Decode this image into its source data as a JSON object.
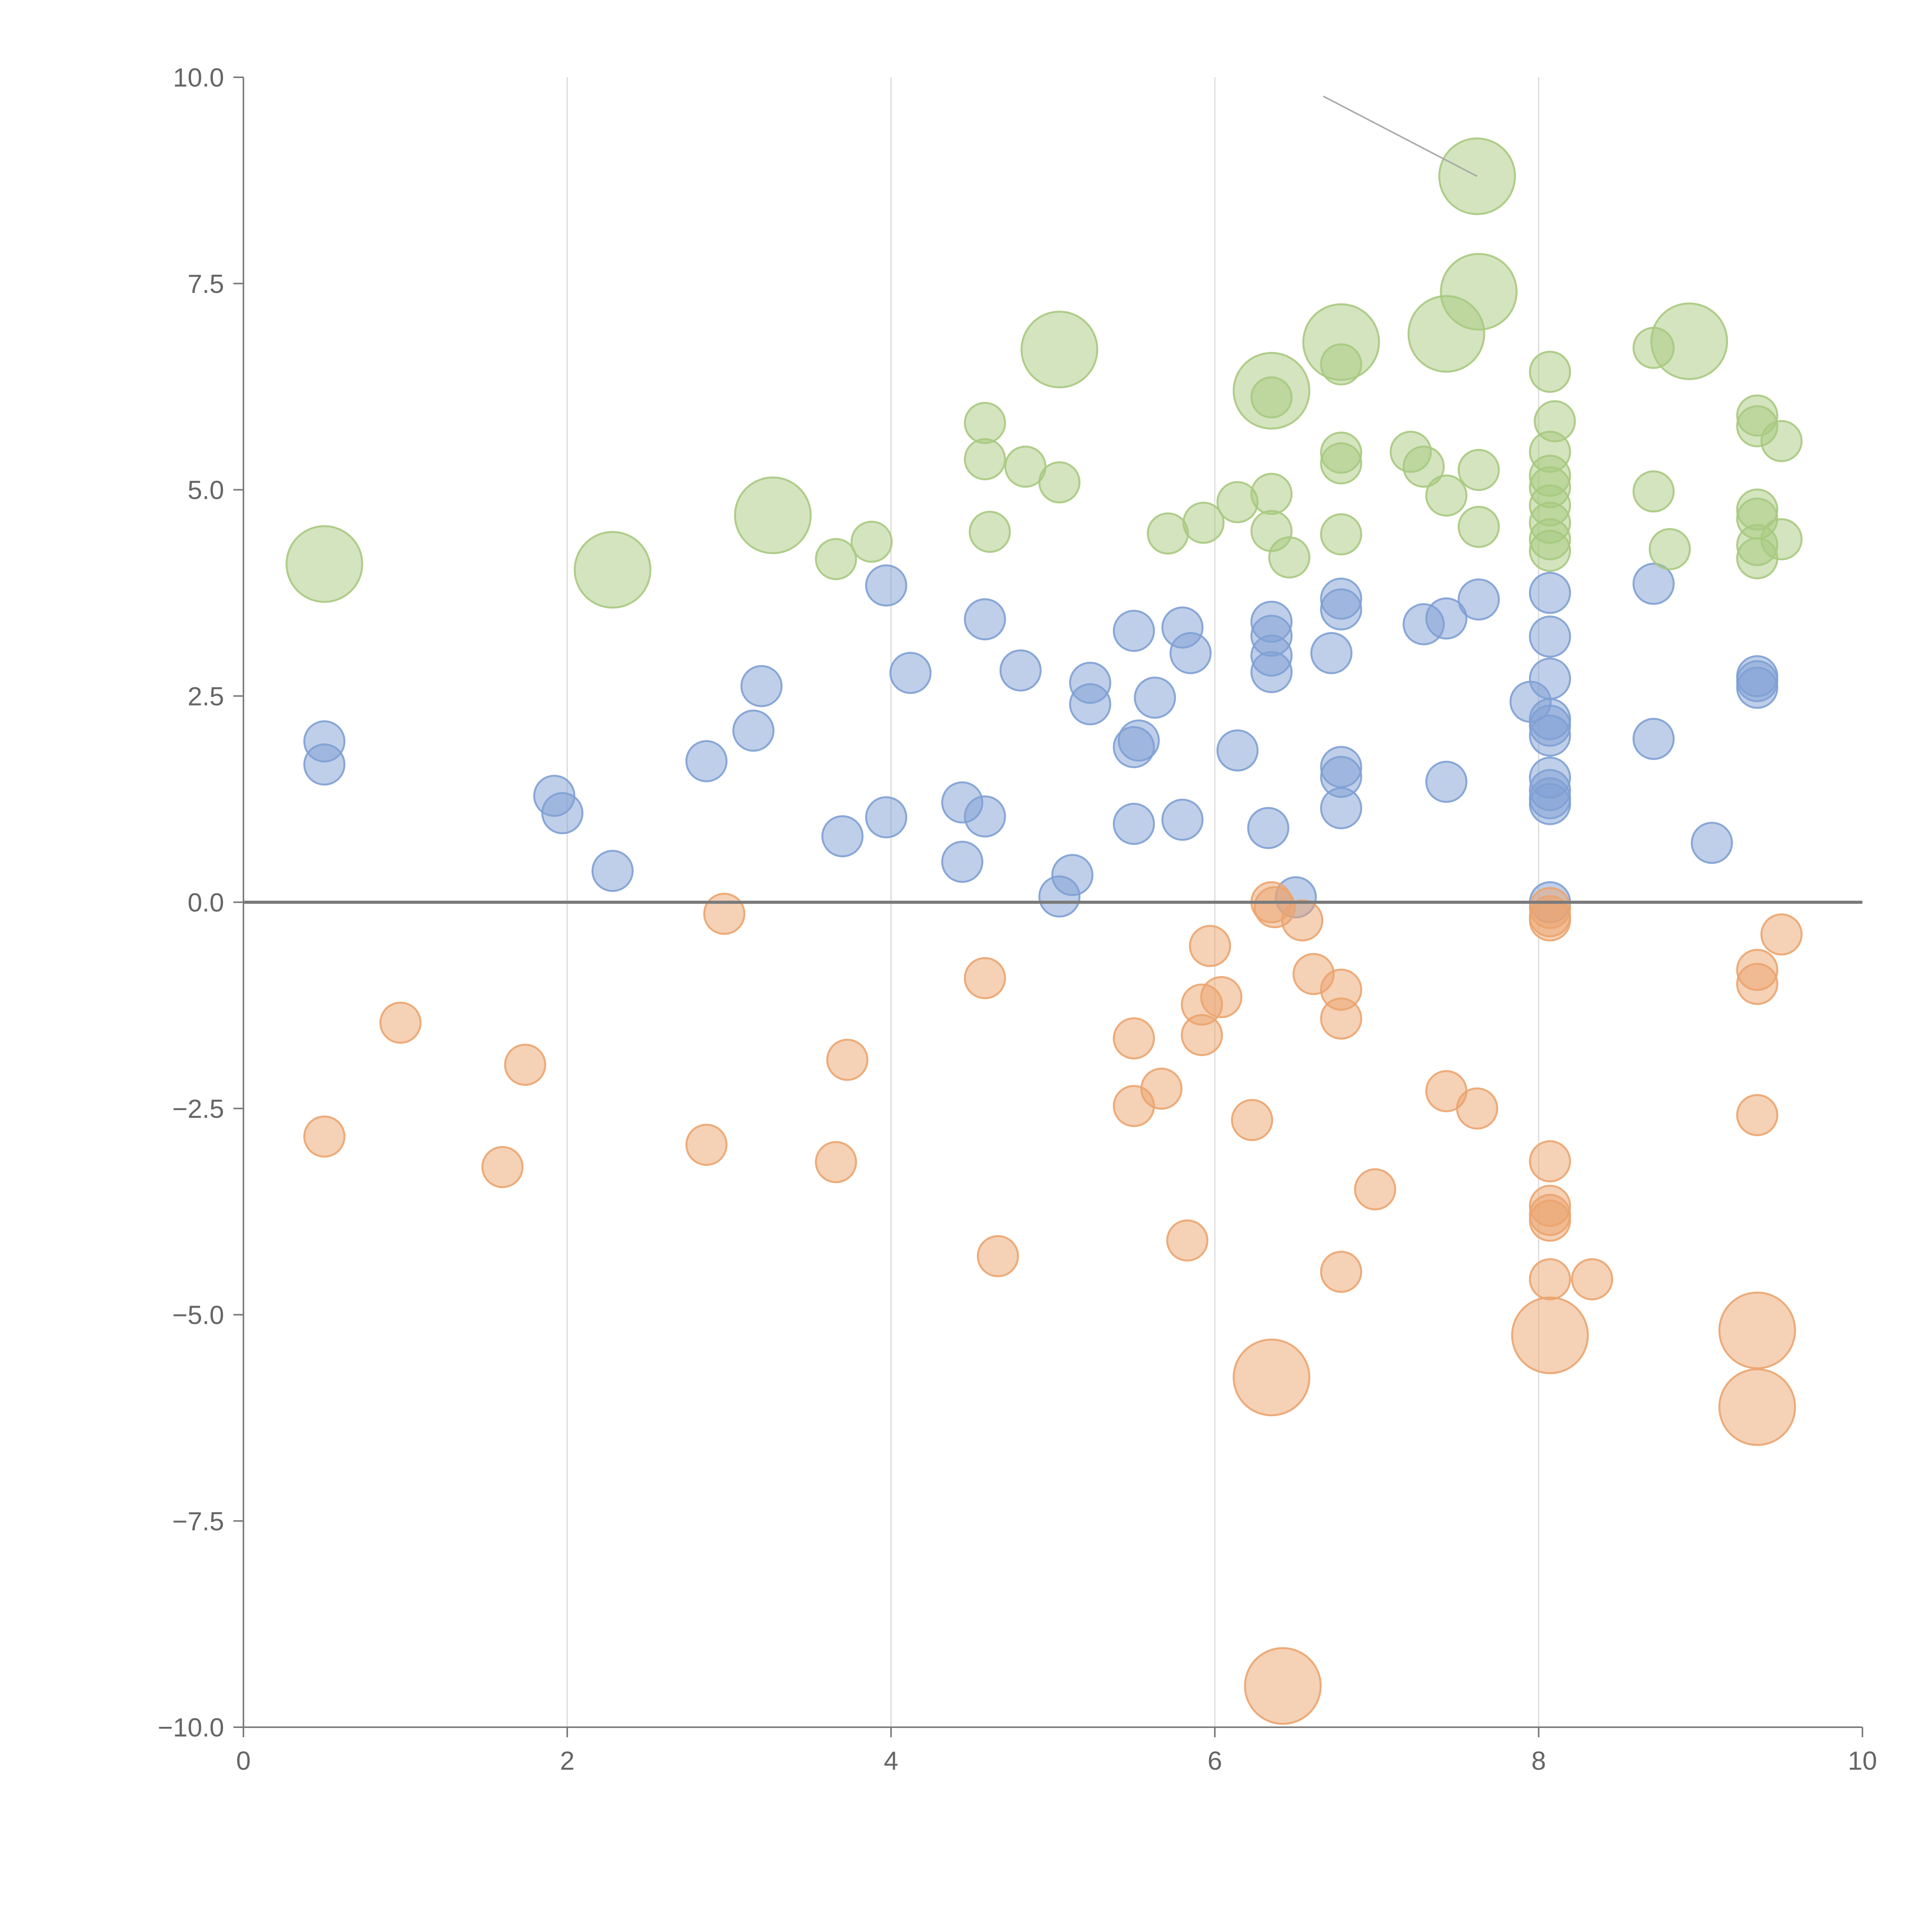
{
  "chart_data": {
    "type": "scatter",
    "title": "",
    "xlabel": "",
    "ylabel": "",
    "xlim": [
      0,
      10
    ],
    "ylim": [
      -10,
      10
    ],
    "x_ticks": [
      "0",
      "2",
      "4",
      "6",
      "8",
      "10"
    ],
    "y_ticks": [
      "10.0",
      "7.5",
      "5.0",
      "2.5",
      "0.0",
      "−2.5",
      "−5.0",
      "−7.5",
      "−10.0"
    ],
    "x_tick_values": [
      0,
      2,
      4,
      6,
      8,
      10
    ],
    "y_tick_values": [
      10,
      7.5,
      5,
      2.5,
      0,
      -2.5,
      -5,
      -7.5,
      -10
    ],
    "grid": {
      "vertical": true,
      "horizontal": false
    },
    "zero_line": true,
    "colors": {
      "blue": "#7fa0d4",
      "green": "#a8c97f",
      "orange": "#eba46e"
    },
    "callout": {
      "from": [
        6.67,
        9.77
      ],
      "to": [
        7.62,
        8.8
      ]
    },
    "series": [
      {
        "color": "#7fa0d4",
        "points": [
          {
            "x": 0.5,
            "y": 1.95,
            "size": 1
          },
          {
            "x": 0.5,
            "y": 1.67,
            "size": 1
          },
          {
            "x": 1.92,
            "y": 1.29,
            "size": 1
          },
          {
            "x": 1.97,
            "y": 1.08,
            "size": 1
          },
          {
            "x": 2.28,
            "y": 0.38,
            "size": 1
          },
          {
            "x": 2.86,
            "y": 1.71,
            "size": 1
          },
          {
            "x": 3.15,
            "y": 2.08,
            "size": 1
          },
          {
            "x": 3.2,
            "y": 2.62,
            "size": 1
          },
          {
            "x": 3.7,
            "y": 0.8,
            "size": 1
          },
          {
            "x": 3.97,
            "y": 3.84,
            "size": 1
          },
          {
            "x": 3.97,
            "y": 1.03,
            "size": 1
          },
          {
            "x": 4.12,
            "y": 2.78,
            "size": 1
          },
          {
            "x": 4.44,
            "y": 1.21,
            "size": 1
          },
          {
            "x": 4.44,
            "y": 0.49,
            "size": 1
          },
          {
            "x": 4.58,
            "y": 3.43,
            "size": 1
          },
          {
            "x": 4.58,
            "y": 1.04,
            "size": 1
          },
          {
            "x": 4.8,
            "y": 2.81,
            "size": 1
          },
          {
            "x": 5.04,
            "y": 0.07,
            "size": 1
          },
          {
            "x": 5.12,
            "y": 0.33,
            "size": 1
          },
          {
            "x": 5.23,
            "y": 2.66,
            "size": 1
          },
          {
            "x": 5.23,
            "y": 2.4,
            "size": 1
          },
          {
            "x": 5.5,
            "y": 3.29,
            "size": 1
          },
          {
            "x": 5.5,
            "y": 1.88,
            "size": 1
          },
          {
            "x": 5.5,
            "y": 0.95,
            "size": 1
          },
          {
            "x": 5.53,
            "y": 1.96,
            "size": 1
          },
          {
            "x": 5.63,
            "y": 2.48,
            "size": 1
          },
          {
            "x": 5.8,
            "y": 3.33,
            "size": 1
          },
          {
            "x": 5.8,
            "y": 1.0,
            "size": 1
          },
          {
            "x": 5.85,
            "y": 3.02,
            "size": 1
          },
          {
            "x": 6.14,
            "y": 1.84,
            "size": 1
          },
          {
            "x": 6.33,
            "y": 0.9,
            "size": 1
          },
          {
            "x": 6.35,
            "y": 3.4,
            "size": 1
          },
          {
            "x": 6.35,
            "y": 3.23,
            "size": 1
          },
          {
            "x": 6.35,
            "y": 2.99,
            "size": 1
          },
          {
            "x": 6.35,
            "y": 2.79,
            "size": 1
          },
          {
            "x": 6.5,
            "y": 0.06,
            "size": 1
          },
          {
            "x": 6.72,
            "y": 3.02,
            "size": 1
          },
          {
            "x": 6.78,
            "y": 3.68,
            "size": 1
          },
          {
            "x": 6.78,
            "y": 3.55,
            "size": 1
          },
          {
            "x": 6.78,
            "y": 1.64,
            "size": 1
          },
          {
            "x": 6.78,
            "y": 1.52,
            "size": 1
          },
          {
            "x": 6.78,
            "y": 1.14,
            "size": 1
          },
          {
            "x": 7.29,
            "y": 3.37,
            "size": 1
          },
          {
            "x": 7.43,
            "y": 3.44,
            "size": 1
          },
          {
            "x": 7.43,
            "y": 1.46,
            "size": 1
          },
          {
            "x": 7.63,
            "y": 3.67,
            "size": 1
          },
          {
            "x": 7.95,
            "y": 2.43,
            "size": 1
          },
          {
            "x": 8.07,
            "y": 3.75,
            "size": 1
          },
          {
            "x": 8.07,
            "y": 3.22,
            "size": 1
          },
          {
            "x": 8.07,
            "y": 2.71,
            "size": 1
          },
          {
            "x": 8.07,
            "y": 2.22,
            "size": 1
          },
          {
            "x": 8.07,
            "y": 2.14,
            "size": 1
          },
          {
            "x": 8.07,
            "y": 2.02,
            "size": 1
          },
          {
            "x": 8.07,
            "y": 1.51,
            "size": 1
          },
          {
            "x": 8.07,
            "y": 1.36,
            "size": 1
          },
          {
            "x": 8.07,
            "y": 1.26,
            "size": 1
          },
          {
            "x": 8.07,
            "y": 1.19,
            "size": 1
          },
          {
            "x": 8.07,
            "y": 0.0,
            "size": 1
          },
          {
            "x": 8.71,
            "y": 3.86,
            "size": 1
          },
          {
            "x": 8.71,
            "y": 1.98,
            "size": 1
          },
          {
            "x": 9.07,
            "y": 0.72,
            "size": 1
          },
          {
            "x": 9.35,
            "y": 2.74,
            "size": 1
          },
          {
            "x": 9.35,
            "y": 2.68,
            "size": 1
          },
          {
            "x": 9.35,
            "y": 2.6,
            "size": 1
          }
        ]
      },
      {
        "color": "#a8c97f",
        "points": [
          {
            "x": 0.5,
            "y": 4.1,
            "size": 2
          },
          {
            "x": 2.28,
            "y": 4.03,
            "size": 2
          },
          {
            "x": 3.27,
            "y": 4.69,
            "size": 2
          },
          {
            "x": 3.66,
            "y": 4.16,
            "size": 1
          },
          {
            "x": 3.88,
            "y": 4.37,
            "size": 1
          },
          {
            "x": 4.58,
            "y": 5.81,
            "size": 1
          },
          {
            "x": 4.58,
            "y": 5.37,
            "size": 1
          },
          {
            "x": 4.61,
            "y": 4.49,
            "size": 1
          },
          {
            "x": 4.83,
            "y": 5.28,
            "size": 1
          },
          {
            "x": 5.04,
            "y": 6.7,
            "size": 2
          },
          {
            "x": 5.04,
            "y": 5.09,
            "size": 1
          },
          {
            "x": 5.71,
            "y": 4.47,
            "size": 1
          },
          {
            "x": 5.93,
            "y": 4.6,
            "size": 1
          },
          {
            "x": 6.14,
            "y": 4.85,
            "size": 1
          },
          {
            "x": 6.35,
            "y": 6.2,
            "size": 2
          },
          {
            "x": 6.35,
            "y": 6.12,
            "size": 1
          },
          {
            "x": 6.35,
            "y": 4.95,
            "size": 1
          },
          {
            "x": 6.35,
            "y": 4.5,
            "size": 1
          },
          {
            "x": 6.46,
            "y": 4.18,
            "size": 1
          },
          {
            "x": 6.78,
            "y": 6.79,
            "size": 2
          },
          {
            "x": 6.78,
            "y": 6.52,
            "size": 1
          },
          {
            "x": 6.78,
            "y": 5.45,
            "size": 1
          },
          {
            "x": 6.78,
            "y": 5.32,
            "size": 1
          },
          {
            "x": 6.78,
            "y": 4.46,
            "size": 1
          },
          {
            "x": 7.21,
            "y": 5.46,
            "size": 1
          },
          {
            "x": 7.29,
            "y": 5.28,
            "size": 1
          },
          {
            "x": 7.43,
            "y": 6.89,
            "size": 2
          },
          {
            "x": 7.43,
            "y": 4.93,
            "size": 1
          },
          {
            "x": 7.62,
            "y": 8.8,
            "size": 2
          },
          {
            "x": 7.63,
            "y": 7.4,
            "size": 2
          },
          {
            "x": 7.63,
            "y": 5.24,
            "size": 1
          },
          {
            "x": 7.63,
            "y": 4.55,
            "size": 1
          },
          {
            "x": 8.07,
            "y": 6.43,
            "size": 1
          },
          {
            "x": 8.07,
            "y": 5.46,
            "size": 1
          },
          {
            "x": 8.07,
            "y": 5.17,
            "size": 1
          },
          {
            "x": 8.07,
            "y": 5.03,
            "size": 1
          },
          {
            "x": 8.07,
            "y": 4.81,
            "size": 1
          },
          {
            "x": 8.07,
            "y": 4.6,
            "size": 1
          },
          {
            "x": 8.07,
            "y": 4.4,
            "size": 1
          },
          {
            "x": 8.07,
            "y": 4.26,
            "size": 1
          },
          {
            "x": 8.1,
            "y": 5.83,
            "size": 1
          },
          {
            "x": 8.71,
            "y": 6.72,
            "size": 1
          },
          {
            "x": 8.71,
            "y": 4.98,
            "size": 1
          },
          {
            "x": 8.81,
            "y": 4.28,
            "size": 1
          },
          {
            "x": 8.93,
            "y": 6.8,
            "size": 2
          },
          {
            "x": 9.35,
            "y": 5.9,
            "size": 1
          },
          {
            "x": 9.35,
            "y": 5.77,
            "size": 1
          },
          {
            "x": 9.35,
            "y": 4.76,
            "size": 1
          },
          {
            "x": 9.35,
            "y": 4.65,
            "size": 1
          },
          {
            "x": 9.35,
            "y": 4.33,
            "size": 1
          },
          {
            "x": 9.35,
            "y": 4.17,
            "size": 1
          },
          {
            "x": 9.5,
            "y": 5.59,
            "size": 1
          },
          {
            "x": 9.5,
            "y": 4.4,
            "size": 1
          }
        ]
      },
      {
        "color": "#eba46e",
        "points": [
          {
            "x": 0.5,
            "y": -2.84,
            "size": 1
          },
          {
            "x": 0.97,
            "y": -1.46,
            "size": 1
          },
          {
            "x": 1.6,
            "y": -3.21,
            "size": 1
          },
          {
            "x": 1.74,
            "y": -1.97,
            "size": 1
          },
          {
            "x": 2.86,
            "y": -2.94,
            "size": 1
          },
          {
            "x": 2.97,
            "y": -0.14,
            "size": 1
          },
          {
            "x": 3.66,
            "y": -3.15,
            "size": 1
          },
          {
            "x": 3.73,
            "y": -1.91,
            "size": 1
          },
          {
            "x": 4.58,
            "y": -0.92,
            "size": 1
          },
          {
            "x": 4.66,
            "y": -4.29,
            "size": 1
          },
          {
            "x": 5.5,
            "y": -1.65,
            "size": 1
          },
          {
            "x": 5.5,
            "y": -2.47,
            "size": 1
          },
          {
            "x": 5.67,
            "y": -2.26,
            "size": 1
          },
          {
            "x": 5.83,
            "y": -4.1,
            "size": 1
          },
          {
            "x": 5.92,
            "y": -1.24,
            "size": 1
          },
          {
            "x": 5.92,
            "y": -1.61,
            "size": 1
          },
          {
            "x": 5.97,
            "y": -0.53,
            "size": 1
          },
          {
            "x": 6.04,
            "y": -1.15,
            "size": 1
          },
          {
            "x": 6.23,
            "y": -2.64,
            "size": 1
          },
          {
            "x": 6.35,
            "y": -5.76,
            "size": 2
          },
          {
            "x": 6.35,
            "y": 0.0,
            "size": 1
          },
          {
            "x": 6.37,
            "y": -0.06,
            "size": 1
          },
          {
            "x": 6.42,
            "y": -9.5,
            "size": 2
          },
          {
            "x": 6.54,
            "y": -0.22,
            "size": 1
          },
          {
            "x": 6.61,
            "y": -0.87,
            "size": 1
          },
          {
            "x": 6.78,
            "y": -1.06,
            "size": 1
          },
          {
            "x": 6.78,
            "y": -1.41,
            "size": 1
          },
          {
            "x": 6.78,
            "y": -4.48,
            "size": 1
          },
          {
            "x": 6.99,
            "y": -3.48,
            "size": 1
          },
          {
            "x": 7.43,
            "y": -2.29,
            "size": 1
          },
          {
            "x": 7.62,
            "y": -2.5,
            "size": 1
          },
          {
            "x": 8.07,
            "y": -0.07,
            "size": 1
          },
          {
            "x": 8.07,
            "y": -0.17,
            "size": 1
          },
          {
            "x": 8.07,
            "y": -0.22,
            "size": 1
          },
          {
            "x": 8.07,
            "y": -3.14,
            "size": 1
          },
          {
            "x": 8.07,
            "y": -3.68,
            "size": 1
          },
          {
            "x": 8.07,
            "y": -3.79,
            "size": 1
          },
          {
            "x": 8.07,
            "y": -3.86,
            "size": 1
          },
          {
            "x": 8.07,
            "y": -4.57,
            "size": 1
          },
          {
            "x": 8.07,
            "y": -5.25,
            "size": 2
          },
          {
            "x": 8.33,
            "y": -4.57,
            "size": 1
          },
          {
            "x": 9.35,
            "y": -0.82,
            "size": 1
          },
          {
            "x": 9.35,
            "y": -0.99,
            "size": 1
          },
          {
            "x": 9.35,
            "y": -2.58,
            "size": 1
          },
          {
            "x": 9.35,
            "y": -5.19,
            "size": 2
          },
          {
            "x": 9.35,
            "y": -6.12,
            "size": 2
          },
          {
            "x": 9.5,
            "y": -0.39,
            "size": 1
          }
        ]
      }
    ]
  }
}
